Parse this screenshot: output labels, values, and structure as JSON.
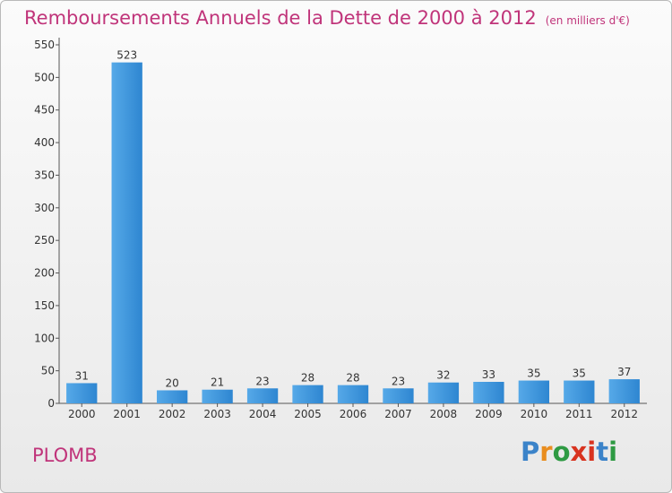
{
  "chart_data": {
    "type": "bar",
    "title": "Remboursements Annuels de la Dette de 2000 à 2012",
    "unit_note": "(en milliers d'€)",
    "categories": [
      "2000",
      "2001",
      "2002",
      "2003",
      "2004",
      "2005",
      "2006",
      "2007",
      "2008",
      "2009",
      "2010",
      "2011",
      "2012"
    ],
    "values": [
      31,
      523,
      20,
      21,
      23,
      28,
      28,
      23,
      32,
      33,
      35,
      35,
      37
    ],
    "ylim": [
      0,
      550
    ],
    "yticks": [
      0,
      50,
      100,
      150,
      200,
      250,
      300,
      350,
      400,
      450,
      500,
      550
    ],
    "grid": false,
    "bar_color": "#3d95dc"
  },
  "footer": {
    "place": "PLOMB",
    "logo_letters": [
      "P",
      "r",
      "o",
      "x",
      "i",
      "t",
      "i"
    ],
    "logo_colors": [
      "#3b83c9",
      "#e98d1f",
      "#2e9a43",
      "#d8331f",
      "#d8331f",
      "#3b83c9",
      "#2e9a43"
    ]
  }
}
